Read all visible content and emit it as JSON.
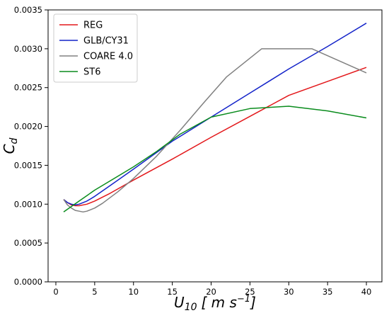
{
  "chart_data": {
    "type": "line",
    "xlabel": "U10 [m s-1]",
    "ylabel": "Cd",
    "xlim": [
      -1,
      42
    ],
    "ylim": [
      0,
      0.0035
    ],
    "xticks": [
      0,
      5,
      10,
      15,
      20,
      25,
      30,
      35,
      40
    ],
    "xtick_labels": [
      "0",
      "5",
      "10",
      "15",
      "20",
      "25",
      "30",
      "35",
      "40"
    ],
    "yticks": [
      0,
      0.0005,
      0.001,
      0.0015,
      0.002,
      0.0025,
      0.003,
      0.0035
    ],
    "ytick_labels": [
      "0.0000",
      "0.0005",
      "0.0010",
      "0.0015",
      "0.0020",
      "0.0025",
      "0.0030",
      "0.0035"
    ],
    "grid": false,
    "legend_position": "top-left",
    "series": [
      {
        "name": "REG",
        "color": "#e3181b",
        "x": [
          1,
          1.5,
          2,
          2.5,
          3,
          4,
          5,
          7,
          10,
          15,
          20,
          25,
          30,
          35,
          40
        ],
        "y": [
          0.00106,
          0.00102,
          0.00099,
          0.00098,
          0.00098,
          0.001,
          0.00104,
          0.00114,
          0.00131,
          0.00158,
          0.00186,
          0.00213,
          0.0024,
          0.00258,
          0.00276
        ]
      },
      {
        "name": "GLB/CY31",
        "color": "#1323c9",
        "x": [
          1,
          1.5,
          2,
          2.5,
          3,
          4,
          5,
          7,
          10,
          15,
          20,
          25,
          30,
          35,
          40
        ],
        "y": [
          0.00106,
          0.00102,
          0.001,
          0.00099,
          0.001,
          0.00104,
          0.0011,
          0.00124,
          0.00145,
          0.00181,
          0.00212,
          0.00243,
          0.00274,
          0.00303,
          0.00333
        ]
      },
      {
        "name": "COARE 4.0",
        "color": "#808080",
        "x": [
          1,
          1.5,
          2,
          2.5,
          3,
          3.5,
          4,
          5,
          6,
          8,
          10,
          13,
          16,
          19,
          22,
          26.5,
          33,
          40
        ],
        "y": [
          0.00106,
          0.00099,
          0.00095,
          0.00092,
          0.00091,
          0.0009,
          0.00091,
          0.00095,
          0.00101,
          0.00116,
          0.00133,
          0.00162,
          0.00195,
          0.0023,
          0.00264,
          0.003,
          0.003,
          0.00269
        ]
      },
      {
        "name": "ST6",
        "color": "#0a8c1d",
        "x": [
          1,
          2,
          3,
          4,
          5,
          7,
          10,
          13,
          16,
          20,
          25,
          30,
          35,
          40
        ],
        "y": [
          0.0009,
          0.00097,
          0.00104,
          0.00111,
          0.00118,
          0.0013,
          0.00148,
          0.00168,
          0.0019,
          0.00212,
          0.00223,
          0.00226,
          0.0022,
          0.00211
        ]
      }
    ]
  }
}
